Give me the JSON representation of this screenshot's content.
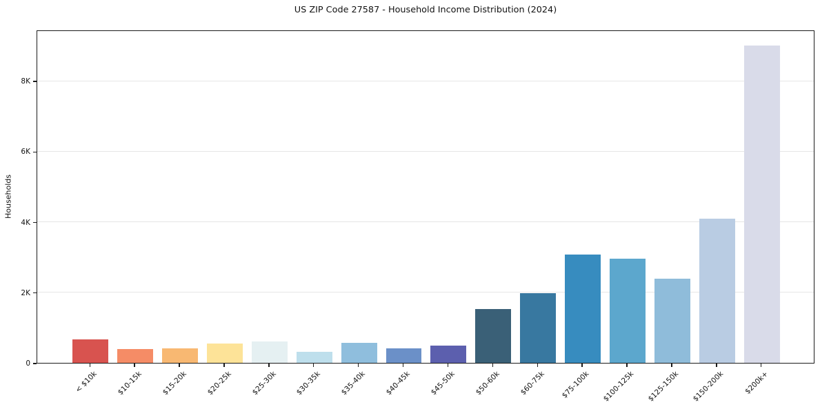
{
  "chart_data": {
    "type": "bar",
    "title": "US ZIP Code 27587 - Household Income Distribution (2024)",
    "xlabel": "",
    "ylabel": "Households",
    "categories": [
      "< $10k",
      "$10-15k",
      "$15-20k",
      "$20-25k",
      "$25-30k",
      "$30-35k",
      "$35-40k",
      "$40-45k",
      "$45-50k",
      "$50-60k",
      "$60-75k",
      "$75-100k",
      "$100-125k",
      "$125-150k",
      "$150-200k",
      "$200k+"
    ],
    "values": [
      670,
      390,
      410,
      545,
      610,
      320,
      575,
      410,
      490,
      1530,
      1980,
      3070,
      2960,
      2390,
      4090,
      9000
    ],
    "bar_colors": [
      "#d8534f",
      "#f58c66",
      "#f8b872",
      "#fde398",
      "#e5f0f2",
      "#bedfec",
      "#8fbedd",
      "#6b90c8",
      "#5c5fae",
      "#3a6077",
      "#3878a0",
      "#378cbf",
      "#5ca7cd",
      "#8fbcda",
      "#b9cce3",
      "#d9dbe9"
    ],
    "yticks": [
      {
        "value": 0,
        "label": "0"
      },
      {
        "value": 2000,
        "label": "2K"
      },
      {
        "value": 4000,
        "label": "4K"
      },
      {
        "value": 6000,
        "label": "6K"
      },
      {
        "value": 8000,
        "label": "8K"
      }
    ],
    "ylim": [
      0,
      9450
    ],
    "grid": "horizontal",
    "gridline_color": "#e6e6e6",
    "spine_color": "#1a1a1a",
    "background": "#ffffff",
    "legend": "none",
    "x_tick_rotation_deg": 45
  }
}
